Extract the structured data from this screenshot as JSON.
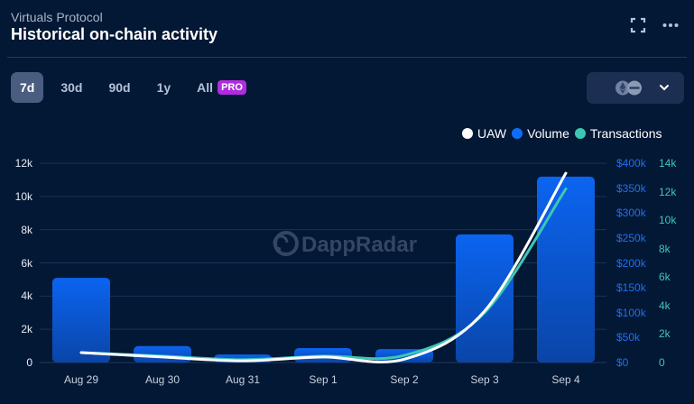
{
  "header": {
    "subtitle": "Virtuals Protocol",
    "title": "Historical on-chain activity",
    "icons": [
      "expand-icon",
      "more-icon"
    ]
  },
  "tabs": [
    {
      "label": "7d",
      "active": true
    },
    {
      "label": "30d",
      "active": false
    },
    {
      "label": "90d",
      "active": false
    },
    {
      "label": "1y",
      "active": false
    },
    {
      "label": "All",
      "active": false,
      "badge": "PRO"
    }
  ],
  "chain_select": {
    "icons": [
      "ethereum-icon",
      "base-chain-icon"
    ],
    "chevron": "chevron-down-icon"
  },
  "legend": [
    {
      "label": "UAW",
      "color": "#ffffff"
    },
    {
      "label": "Volume",
      "color": "#0d6efd"
    },
    {
      "label": "Transactions",
      "color": "#3ec6b4"
    }
  ],
  "watermark": "DappRadar",
  "axes": {
    "left": [
      "12k",
      "10k",
      "8k",
      "6k",
      "4k",
      "2k",
      "0"
    ],
    "volume": [
      "$400k",
      "$350k",
      "$300k",
      "$250k",
      "$200k",
      "$150k",
      "$100k",
      "$50k",
      "$0"
    ],
    "transactions": [
      "14k",
      "12k",
      "10k",
      "8k",
      "6k",
      "4k",
      "2k",
      "0"
    ]
  },
  "chart_data": {
    "type": "bar",
    "title": "Historical on-chain activity",
    "subtitle": "Virtuals Protocol",
    "categories": [
      "Aug 29",
      "Aug 30",
      "Aug 31",
      "Sep 1",
      "Sep 2",
      "Sep 3",
      "Sep 4"
    ],
    "series": [
      {
        "name": "Volume",
        "type": "bar",
        "axis": "right-volume",
        "unit": "USD",
        "color": "#0d6efd",
        "values": [
          170000,
          33000,
          16000,
          29000,
          27000,
          257000,
          373000
        ]
      },
      {
        "name": "UAW",
        "type": "line",
        "axis": "left",
        "color": "#ffffff",
        "values": [
          600,
          330,
          100,
          330,
          200,
          3100,
          11400
        ]
      },
      {
        "name": "Transactions",
        "type": "line",
        "axis": "right-transactions",
        "color": "#3ec6b4",
        "values": [
          700,
          450,
          200,
          450,
          500,
          3500,
          12200
        ]
      }
    ],
    "ylim_left": [
      0,
      12000
    ],
    "ylim_volume": [
      0,
      400000
    ],
    "ylim_transactions": [
      0,
      14000
    ],
    "grid": true,
    "legend_position": "top-right"
  }
}
